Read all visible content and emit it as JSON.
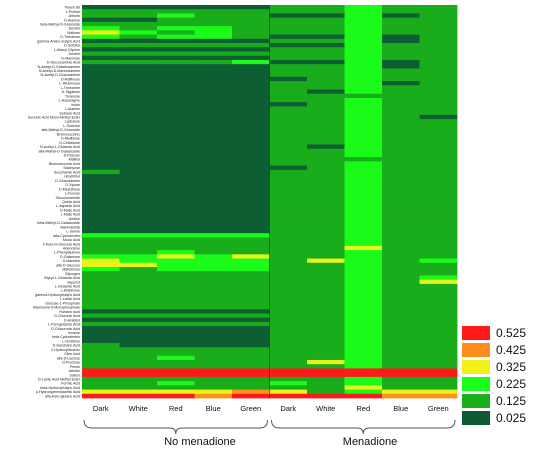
{
  "chart_data": {
    "type": "heatmap",
    "title": "",
    "xlabel": "",
    "ylabel": "",
    "colors": {
      "0.525": "#ff1a1a",
      "0.425": "#ff8c1a",
      "0.325": "#f2f21a",
      "0.225": "#1aff1a",
      "0.125": "#1ab01a",
      "0.025": "#0d5a35"
    },
    "legend": {
      "placement": "bottom-right",
      "items": [
        {
          "label": "0.525",
          "color": "#ff1a1a"
        },
        {
          "label": "0.425",
          "color": "#ff8c1a"
        },
        {
          "label": "0.325",
          "color": "#f2f21a"
        },
        {
          "label": "0.225",
          "color": "#1aff1a"
        },
        {
          "label": "0.125",
          "color": "#1ab01a"
        },
        {
          "label": "0.025",
          "color": "#0d5a35"
        }
      ]
    },
    "columns": [
      "Dark",
      "White",
      "Red",
      "Blue",
      "Green",
      "Dark",
      "White",
      "Red",
      "Blue",
      "Green"
    ],
    "groups": [
      {
        "label": "No menadione",
        "columns": [
          0,
          4
        ]
      },
      {
        "label": "Menadione",
        "columns": [
          5,
          9
        ]
      }
    ],
    "rows": [
      "Tween 80",
      "L-Proline",
      "Arbutin",
      "D-Alanine",
      "beta-Methyl-D-Glucoside",
      "Dextrin",
      "Maltose",
      "D-Trehalose",
      "gamma-Amino-butyric Acid",
      "D-Sorbitol",
      "L-Alanyl-Glycine",
      "Dextrin",
      "D-Mannose",
      "D-Glucosaminic Acid",
      "N-Acetyl-D-Galactosamine",
      "N-Acetyl-D-Mannosamine",
      "N-Acetyl-D-Glucosamine",
      "D-Raffinose",
      "L-Rhamnose",
      "L-Threonine",
      "D-Tagatose",
      "Turanose",
      "L-Asparagine",
      "Inulin",
      "L-Alanine",
      "Sebacic Acid",
      "Succinic Acid Mono-Methyl Ester",
      "Lactulose",
      "L-Sorbose",
      "alfa-Methyl-D-Glucoside",
      "Bromosuccinic",
      "D-Melibiose",
      "D-Cellobiose",
      "N-Acetyl-L-Glutamic Acid",
      "alfa-Methyl-D-Galactoside",
      "D-Psicose",
      "Maltitol",
      "Bromosuccinic Acid",
      "Stachyose",
      "Succinamic Acid",
      "i-Erythritol",
      "D-Glucosamine",
      "D-Xylose",
      "D-Melezitose",
      "L-Fucose",
      "Glucuronamide",
      "Quinic Acid",
      "L-Aspartic Acid",
      "D-Malic Acid",
      "L-Malic Acid",
      "Uridine",
      "beta-Methyl-D-Galactoside",
      "Alaninamide",
      "L-Serine",
      "alfa-Cyclodextrin",
      "Mucic Acid",
      "2-Keto-D-Gluconic Acid",
      "Adenosine",
      "L-Phenylalanine",
      "D-Galactose",
      "D-Mannitol",
      "alfa-D-Glucose",
      "Maltotriose",
      "Glycogen",
      "Glycyl-L-Glutamic Acid",
      "Glycerol",
      "L-Glutamic Acid",
      "L-Arabinose",
      "gamma-Hydroxybutyric Acid",
      "L-Lactic Acid",
      "Glucose-1-Phosphate",
      "Adenosine-5-Monophosphate",
      "Fumaric Acid",
      "D-Gluconic Acid",
      "D-Arabitol",
      "L-Pyroglutamic Acid",
      "D-Glucuronic Acid",
      "Inosine",
      "beta-Cyclodextrin",
      "L-Ornithine",
      "D-Saccharic Acid",
      "2-Hydroxybenzoic",
      "Citric Acid",
      "alfa-D-Lactose",
      "D-Fructose",
      "Pectin",
      "Arbutin",
      "Salicin",
      "D-Lactic Acid Methyl Ester",
      "Formic Acid",
      "beta-Hydroxybutyric Acid",
      "p-Hydroxyphenylacetic Acid",
      "alfa-Keto-glutaric Acid"
    ],
    "values": [
      [
        0.03,
        0.03,
        0.03,
        0.03,
        0.03,
        0.12,
        0.12,
        0.22,
        0.12,
        0.12
      ],
      [
        0.12,
        0.12,
        0.12,
        0.12,
        0.12,
        0.12,
        0.12,
        0.22,
        0.12,
        0.12
      ],
      [
        0.12,
        0.12,
        0.22,
        0.12,
        0.12,
        0.03,
        0.03,
        0.22,
        0.03,
        0.12
      ],
      [
        0.03,
        0.03,
        0.12,
        0.12,
        0.12,
        0.12,
        0.12,
        0.22,
        0.12,
        0.12
      ],
      [
        0.12,
        0.12,
        0.12,
        0.12,
        0.12,
        0.12,
        0.12,
        0.22,
        0.12,
        0.12
      ],
      [
        0.22,
        0.12,
        0.22,
        0.22,
        0.12,
        0.12,
        0.12,
        0.22,
        0.12,
        0.12
      ],
      [
        0.32,
        0.22,
        0.12,
        0.22,
        0.12,
        0.12,
        0.12,
        0.22,
        0.12,
        0.12
      ],
      [
        0.22,
        0.12,
        0.22,
        0.22,
        0.12,
        0.03,
        0.03,
        0.22,
        0.03,
        0.12
      ],
      [
        0.03,
        0.03,
        0.03,
        0.03,
        0.03,
        0.12,
        0.12,
        0.22,
        0.03,
        0.12
      ],
      [
        0.12,
        0.12,
        0.12,
        0.12,
        0.12,
        0.03,
        0.03,
        0.22,
        0.12,
        0.12
      ],
      [
        0.03,
        0.03,
        0.03,
        0.03,
        0.03,
        0.12,
        0.12,
        0.22,
        0.12,
        0.12
      ],
      [
        0.12,
        0.12,
        0.12,
        0.12,
        0.12,
        0.12,
        0.12,
        0.22,
        0.12,
        0.12
      ],
      [
        0.03,
        0.03,
        0.03,
        0.03,
        0.03,
        0.12,
        0.12,
        0.22,
        0.12,
        0.12
      ],
      [
        0.12,
        0.12,
        0.12,
        0.12,
        0.22,
        0.03,
        0.03,
        0.22,
        0.03,
        0.12
      ],
      [
        0.03,
        0.03,
        0.03,
        0.03,
        0.03,
        0.12,
        0.12,
        0.22,
        0.03,
        0.12
      ],
      [
        0.03,
        0.03,
        0.03,
        0.03,
        0.03,
        0.12,
        0.12,
        0.22,
        0.12,
        0.12
      ],
      [
        0.03,
        0.03,
        0.03,
        0.03,
        0.03,
        0.12,
        0.12,
        0.22,
        0.12,
        0.12
      ],
      [
        0.03,
        0.03,
        0.03,
        0.03,
        0.03,
        0.03,
        0.12,
        0.22,
        0.12,
        0.12
      ],
      [
        0.03,
        0.03,
        0.03,
        0.03,
        0.03,
        0.12,
        0.12,
        0.22,
        0.03,
        0.12
      ],
      [
        0.03,
        0.03,
        0.03,
        0.03,
        0.03,
        0.12,
        0.12,
        0.22,
        0.12,
        0.12
      ],
      [
        0.03,
        0.03,
        0.03,
        0.03,
        0.03,
        0.12,
        0.03,
        0.22,
        0.12,
        0.12
      ],
      [
        0.03,
        0.03,
        0.03,
        0.03,
        0.03,
        0.12,
        0.12,
        0.12,
        0.12,
        0.12
      ],
      [
        0.03,
        0.03,
        0.03,
        0.03,
        0.03,
        0.12,
        0.12,
        0.22,
        0.12,
        0.12
      ],
      [
        0.03,
        0.03,
        0.03,
        0.03,
        0.03,
        0.03,
        0.12,
        0.22,
        0.12,
        0.12
      ],
      [
        0.03,
        0.03,
        0.03,
        0.03,
        0.03,
        0.12,
        0.12,
        0.22,
        0.12,
        0.12
      ],
      [
        0.03,
        0.03,
        0.03,
        0.03,
        0.03,
        0.12,
        0.12,
        0.22,
        0.12,
        0.12
      ],
      [
        0.03,
        0.03,
        0.03,
        0.03,
        0.03,
        0.12,
        0.12,
        0.22,
        0.12,
        0.03
      ],
      [
        0.03,
        0.03,
        0.03,
        0.03,
        0.03,
        0.12,
        0.12,
        0.22,
        0.12,
        0.12
      ],
      [
        0.03,
        0.03,
        0.03,
        0.03,
        0.03,
        0.12,
        0.12,
        0.22,
        0.12,
        0.12
      ],
      [
        0.03,
        0.03,
        0.03,
        0.03,
        0.03,
        0.12,
        0.12,
        0.22,
        0.12,
        0.12
      ],
      [
        0.03,
        0.03,
        0.03,
        0.03,
        0.03,
        0.12,
        0.12,
        0.22,
        0.12,
        0.12
      ],
      [
        0.03,
        0.03,
        0.03,
        0.03,
        0.03,
        0.12,
        0.12,
        0.22,
        0.12,
        0.12
      ],
      [
        0.03,
        0.03,
        0.03,
        0.03,
        0.03,
        0.12,
        0.12,
        0.22,
        0.12,
        0.12
      ],
      [
        0.03,
        0.03,
        0.03,
        0.03,
        0.03,
        0.12,
        0.03,
        0.22,
        0.12,
        0.12
      ],
      [
        0.03,
        0.03,
        0.03,
        0.03,
        0.03,
        0.12,
        0.12,
        0.22,
        0.12,
        0.12
      ],
      [
        0.03,
        0.03,
        0.03,
        0.03,
        0.03,
        0.12,
        0.12,
        0.22,
        0.12,
        0.12
      ],
      [
        0.03,
        0.03,
        0.03,
        0.03,
        0.03,
        0.12,
        0.12,
        0.12,
        0.12,
        0.12
      ],
      [
        0.03,
        0.03,
        0.03,
        0.03,
        0.03,
        0.12,
        0.12,
        0.22,
        0.12,
        0.12
      ],
      [
        0.03,
        0.03,
        0.03,
        0.03,
        0.03,
        0.03,
        0.12,
        0.22,
        0.12,
        0.12
      ],
      [
        0.12,
        0.03,
        0.03,
        0.03,
        0.03,
        0.12,
        0.12,
        0.22,
        0.12,
        0.12
      ],
      [
        0.03,
        0.03,
        0.03,
        0.03,
        0.03,
        0.12,
        0.12,
        0.22,
        0.12,
        0.12
      ],
      [
        0.03,
        0.03,
        0.03,
        0.03,
        0.03,
        0.12,
        0.12,
        0.22,
        0.12,
        0.12
      ],
      [
        0.03,
        0.03,
        0.03,
        0.03,
        0.03,
        0.12,
        0.12,
        0.22,
        0.12,
        0.12
      ],
      [
        0.03,
        0.03,
        0.03,
        0.03,
        0.03,
        0.12,
        0.12,
        0.22,
        0.12,
        0.12
      ],
      [
        0.03,
        0.03,
        0.03,
        0.03,
        0.03,
        0.12,
        0.12,
        0.22,
        0.12,
        0.12
      ],
      [
        0.03,
        0.03,
        0.03,
        0.03,
        0.03,
        0.12,
        0.12,
        0.22,
        0.12,
        0.12
      ],
      [
        0.03,
        0.03,
        0.03,
        0.03,
        0.03,
        0.12,
        0.12,
        0.22,
        0.12,
        0.12
      ],
      [
        0.03,
        0.03,
        0.03,
        0.03,
        0.03,
        0.12,
        0.12,
        0.22,
        0.12,
        0.12
      ],
      [
        0.03,
        0.03,
        0.03,
        0.03,
        0.03,
        0.12,
        0.12,
        0.22,
        0.12,
        0.12
      ],
      [
        0.03,
        0.03,
        0.03,
        0.03,
        0.03,
        0.12,
        0.12,
        0.22,
        0.12,
        0.12
      ],
      [
        0.03,
        0.03,
        0.03,
        0.03,
        0.03,
        0.12,
        0.12,
        0.22,
        0.12,
        0.12
      ],
      [
        0.03,
        0.03,
        0.03,
        0.03,
        0.03,
        0.12,
        0.12,
        0.22,
        0.12,
        0.12
      ],
      [
        0.03,
        0.03,
        0.03,
        0.03,
        0.03,
        0.12,
        0.12,
        0.22,
        0.12,
        0.12
      ],
      [
        0.03,
        0.03,
        0.03,
        0.03,
        0.03,
        0.12,
        0.12,
        0.22,
        0.12,
        0.12
      ],
      [
        0.22,
        0.22,
        0.22,
        0.22,
        0.22,
        0.12,
        0.12,
        0.22,
        0.12,
        0.12
      ],
      [
        0.12,
        0.12,
        0.12,
        0.12,
        0.12,
        0.12,
        0.12,
        0.22,
        0.12,
        0.12
      ],
      [
        0.12,
        0.12,
        0.12,
        0.12,
        0.12,
        0.12,
        0.12,
        0.22,
        0.12,
        0.12
      ],
      [
        0.12,
        0.12,
        0.12,
        0.12,
        0.12,
        0.12,
        0.12,
        0.32,
        0.12,
        0.12
      ],
      [
        0.12,
        0.12,
        0.22,
        0.12,
        0.12,
        0.12,
        0.12,
        0.22,
        0.12,
        0.12
      ],
      [
        0.22,
        0.22,
        0.32,
        0.22,
        0.32,
        0.12,
        0.12,
        0.22,
        0.12,
        0.12
      ],
      [
        0.32,
        0.22,
        0.22,
        0.22,
        0.22,
        0.12,
        0.32,
        0.22,
        0.12,
        0.22
      ],
      [
        0.32,
        0.32,
        0.22,
        0.22,
        0.22,
        0.12,
        0.12,
        0.22,
        0.12,
        0.12
      ],
      [
        0.22,
        0.12,
        0.22,
        0.22,
        0.22,
        0.12,
        0.12,
        0.22,
        0.12,
        0.12
      ],
      [
        0.12,
        0.12,
        0.12,
        0.12,
        0.12,
        0.12,
        0.12,
        0.22,
        0.12,
        0.12
      ],
      [
        0.12,
        0.12,
        0.12,
        0.12,
        0.12,
        0.12,
        0.12,
        0.22,
        0.12,
        0.22
      ],
      [
        0.12,
        0.12,
        0.12,
        0.12,
        0.12,
        0.12,
        0.12,
        0.22,
        0.12,
        0.32
      ],
      [
        0.12,
        0.12,
        0.12,
        0.12,
        0.12,
        0.12,
        0.12,
        0.22,
        0.12,
        0.12
      ],
      [
        0.12,
        0.12,
        0.12,
        0.12,
        0.12,
        0.12,
        0.12,
        0.22,
        0.12,
        0.12
      ],
      [
        0.12,
        0.12,
        0.12,
        0.12,
        0.12,
        0.12,
        0.12,
        0.22,
        0.12,
        0.12
      ],
      [
        0.12,
        0.12,
        0.12,
        0.12,
        0.12,
        0.12,
        0.12,
        0.22,
        0.12,
        0.12
      ],
      [
        0.12,
        0.12,
        0.12,
        0.12,
        0.12,
        0.12,
        0.12,
        0.22,
        0.12,
        0.12
      ],
      [
        0.12,
        0.12,
        0.12,
        0.12,
        0.12,
        0.12,
        0.12,
        0.22,
        0.12,
        0.12
      ],
      [
        0.03,
        0.03,
        0.03,
        0.03,
        0.03,
        0.12,
        0.12,
        0.22,
        0.12,
        0.12
      ],
      [
        0.12,
        0.12,
        0.12,
        0.12,
        0.12,
        0.12,
        0.12,
        0.22,
        0.12,
        0.12
      ],
      [
        0.03,
        0.03,
        0.03,
        0.03,
        0.03,
        0.12,
        0.12,
        0.22,
        0.12,
        0.12
      ],
      [
        0.12,
        0.12,
        0.12,
        0.12,
        0.12,
        0.12,
        0.12,
        0.22,
        0.12,
        0.12
      ],
      [
        0.03,
        0.03,
        0.03,
        0.03,
        0.03,
        0.12,
        0.12,
        0.22,
        0.12,
        0.12
      ],
      [
        0.03,
        0.03,
        0.03,
        0.03,
        0.03,
        0.12,
        0.12,
        0.22,
        0.12,
        0.12
      ],
      [
        0.03,
        0.03,
        0.03,
        0.03,
        0.03,
        0.12,
        0.12,
        0.22,
        0.12,
        0.12
      ],
      [
        0.03,
        0.03,
        0.03,
        0.03,
        0.03,
        0.12,
        0.12,
        0.22,
        0.12,
        0.12
      ],
      [
        0.12,
        0.03,
        0.03,
        0.03,
        0.03,
        0.12,
        0.12,
        0.22,
        0.12,
        0.12
      ],
      [
        0.12,
        0.12,
        0.12,
        0.12,
        0.12,
        0.12,
        0.12,
        0.22,
        0.12,
        0.12
      ],
      [
        0.12,
        0.12,
        0.12,
        0.12,
        0.12,
        0.12,
        0.12,
        0.22,
        0.12,
        0.12
      ],
      [
        0.12,
        0.12,
        0.22,
        0.12,
        0.12,
        0.12,
        0.12,
        0.22,
        0.12,
        0.12
      ],
      [
        0.12,
        0.12,
        0.12,
        0.12,
        0.12,
        0.12,
        0.32,
        0.22,
        0.12,
        0.12
      ],
      [
        0.12,
        0.12,
        0.12,
        0.12,
        0.12,
        0.12,
        0.12,
        0.22,
        0.12,
        0.12
      ],
      [
        0.53,
        0.53,
        0.53,
        0.53,
        0.53,
        0.53,
        0.53,
        0.53,
        0.53,
        0.53
      ],
      [
        0.53,
        0.53,
        0.53,
        0.53,
        0.53,
        0.53,
        0.53,
        0.53,
        0.53,
        0.53
      ],
      [
        0.12,
        0.12,
        0.12,
        0.12,
        0.12,
        0.12,
        0.12,
        0.22,
        0.12,
        0.12
      ],
      [
        0.12,
        0.12,
        0.22,
        0.12,
        0.12,
        0.22,
        0.12,
        0.22,
        0.12,
        0.12
      ],
      [
        0.12,
        0.12,
        0.12,
        0.12,
        0.12,
        0.12,
        0.12,
        0.32,
        0.12,
        0.12
      ],
      [
        0.32,
        0.32,
        0.32,
        0.32,
        0.42,
        0.32,
        0.12,
        0.22,
        0.32,
        0.32
      ],
      [
        0.53,
        0.53,
        0.53,
        0.42,
        0.53,
        0.53,
        0.53,
        0.53,
        0.42,
        0.42
      ]
    ]
  }
}
